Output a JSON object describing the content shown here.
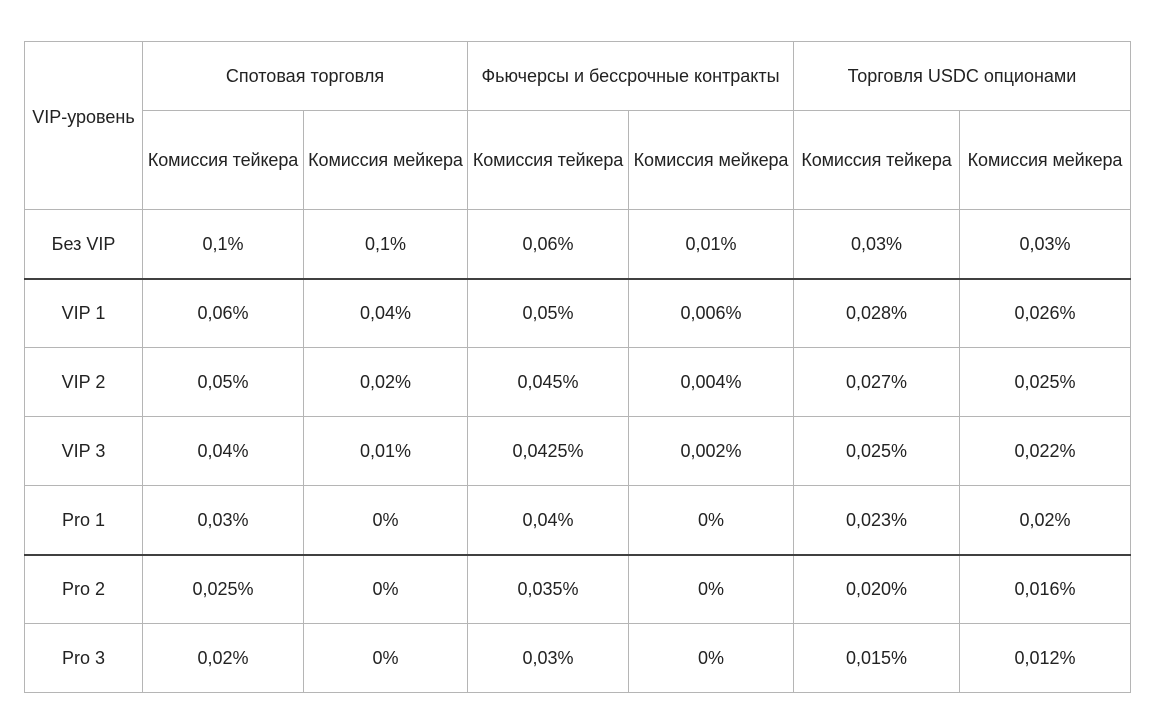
{
  "table": {
    "vip_header": "VIP-уровень",
    "groups": [
      {
        "title": "Спотовая торговля",
        "taker": "Комиссия тейкера",
        "maker": "Комиссия мейкера"
      },
      {
        "title": "Фьючерсы и бессрочные контракты",
        "taker": "Комиссия тейкера",
        "maker": "Комиссия мейкера"
      },
      {
        "title": "Торговля USDC опционами",
        "taker": "Комиссия тейкера",
        "maker": "Комиссия мейкера"
      }
    ],
    "rows": [
      {
        "level": "Без VIP",
        "values": [
          "0,1%",
          "0,1%",
          "0,06%",
          "0,01%",
          "0,03%",
          "0,03%"
        ]
      },
      {
        "level": "VIP 1",
        "values": [
          "0,06%",
          "0,04%",
          "0,05%",
          "0,006%",
          "0,028%",
          "0,026%"
        ]
      },
      {
        "level": "VIP 2",
        "values": [
          "0,05%",
          "0,02%",
          "0,045%",
          "0,004%",
          "0,027%",
          "0,025%"
        ]
      },
      {
        "level": "VIP 3",
        "values": [
          "0,04%",
          "0,01%",
          "0,0425%",
          "0,002%",
          "0,025%",
          "0,022%"
        ]
      },
      {
        "level": "Pro 1",
        "values": [
          "0,03%",
          "0%",
          "0,04%",
          "0%",
          "0,023%",
          "0,02%"
        ]
      },
      {
        "level": "Pro 2",
        "values": [
          "0,025%",
          "0%",
          "0,035%",
          "0%",
          "0,020%",
          "0,016%"
        ]
      },
      {
        "level": "Pro 3",
        "values": [
          "0,02%",
          "0%",
          "0,03%",
          "0%",
          "0,015%",
          "0,012%"
        ]
      }
    ]
  }
}
